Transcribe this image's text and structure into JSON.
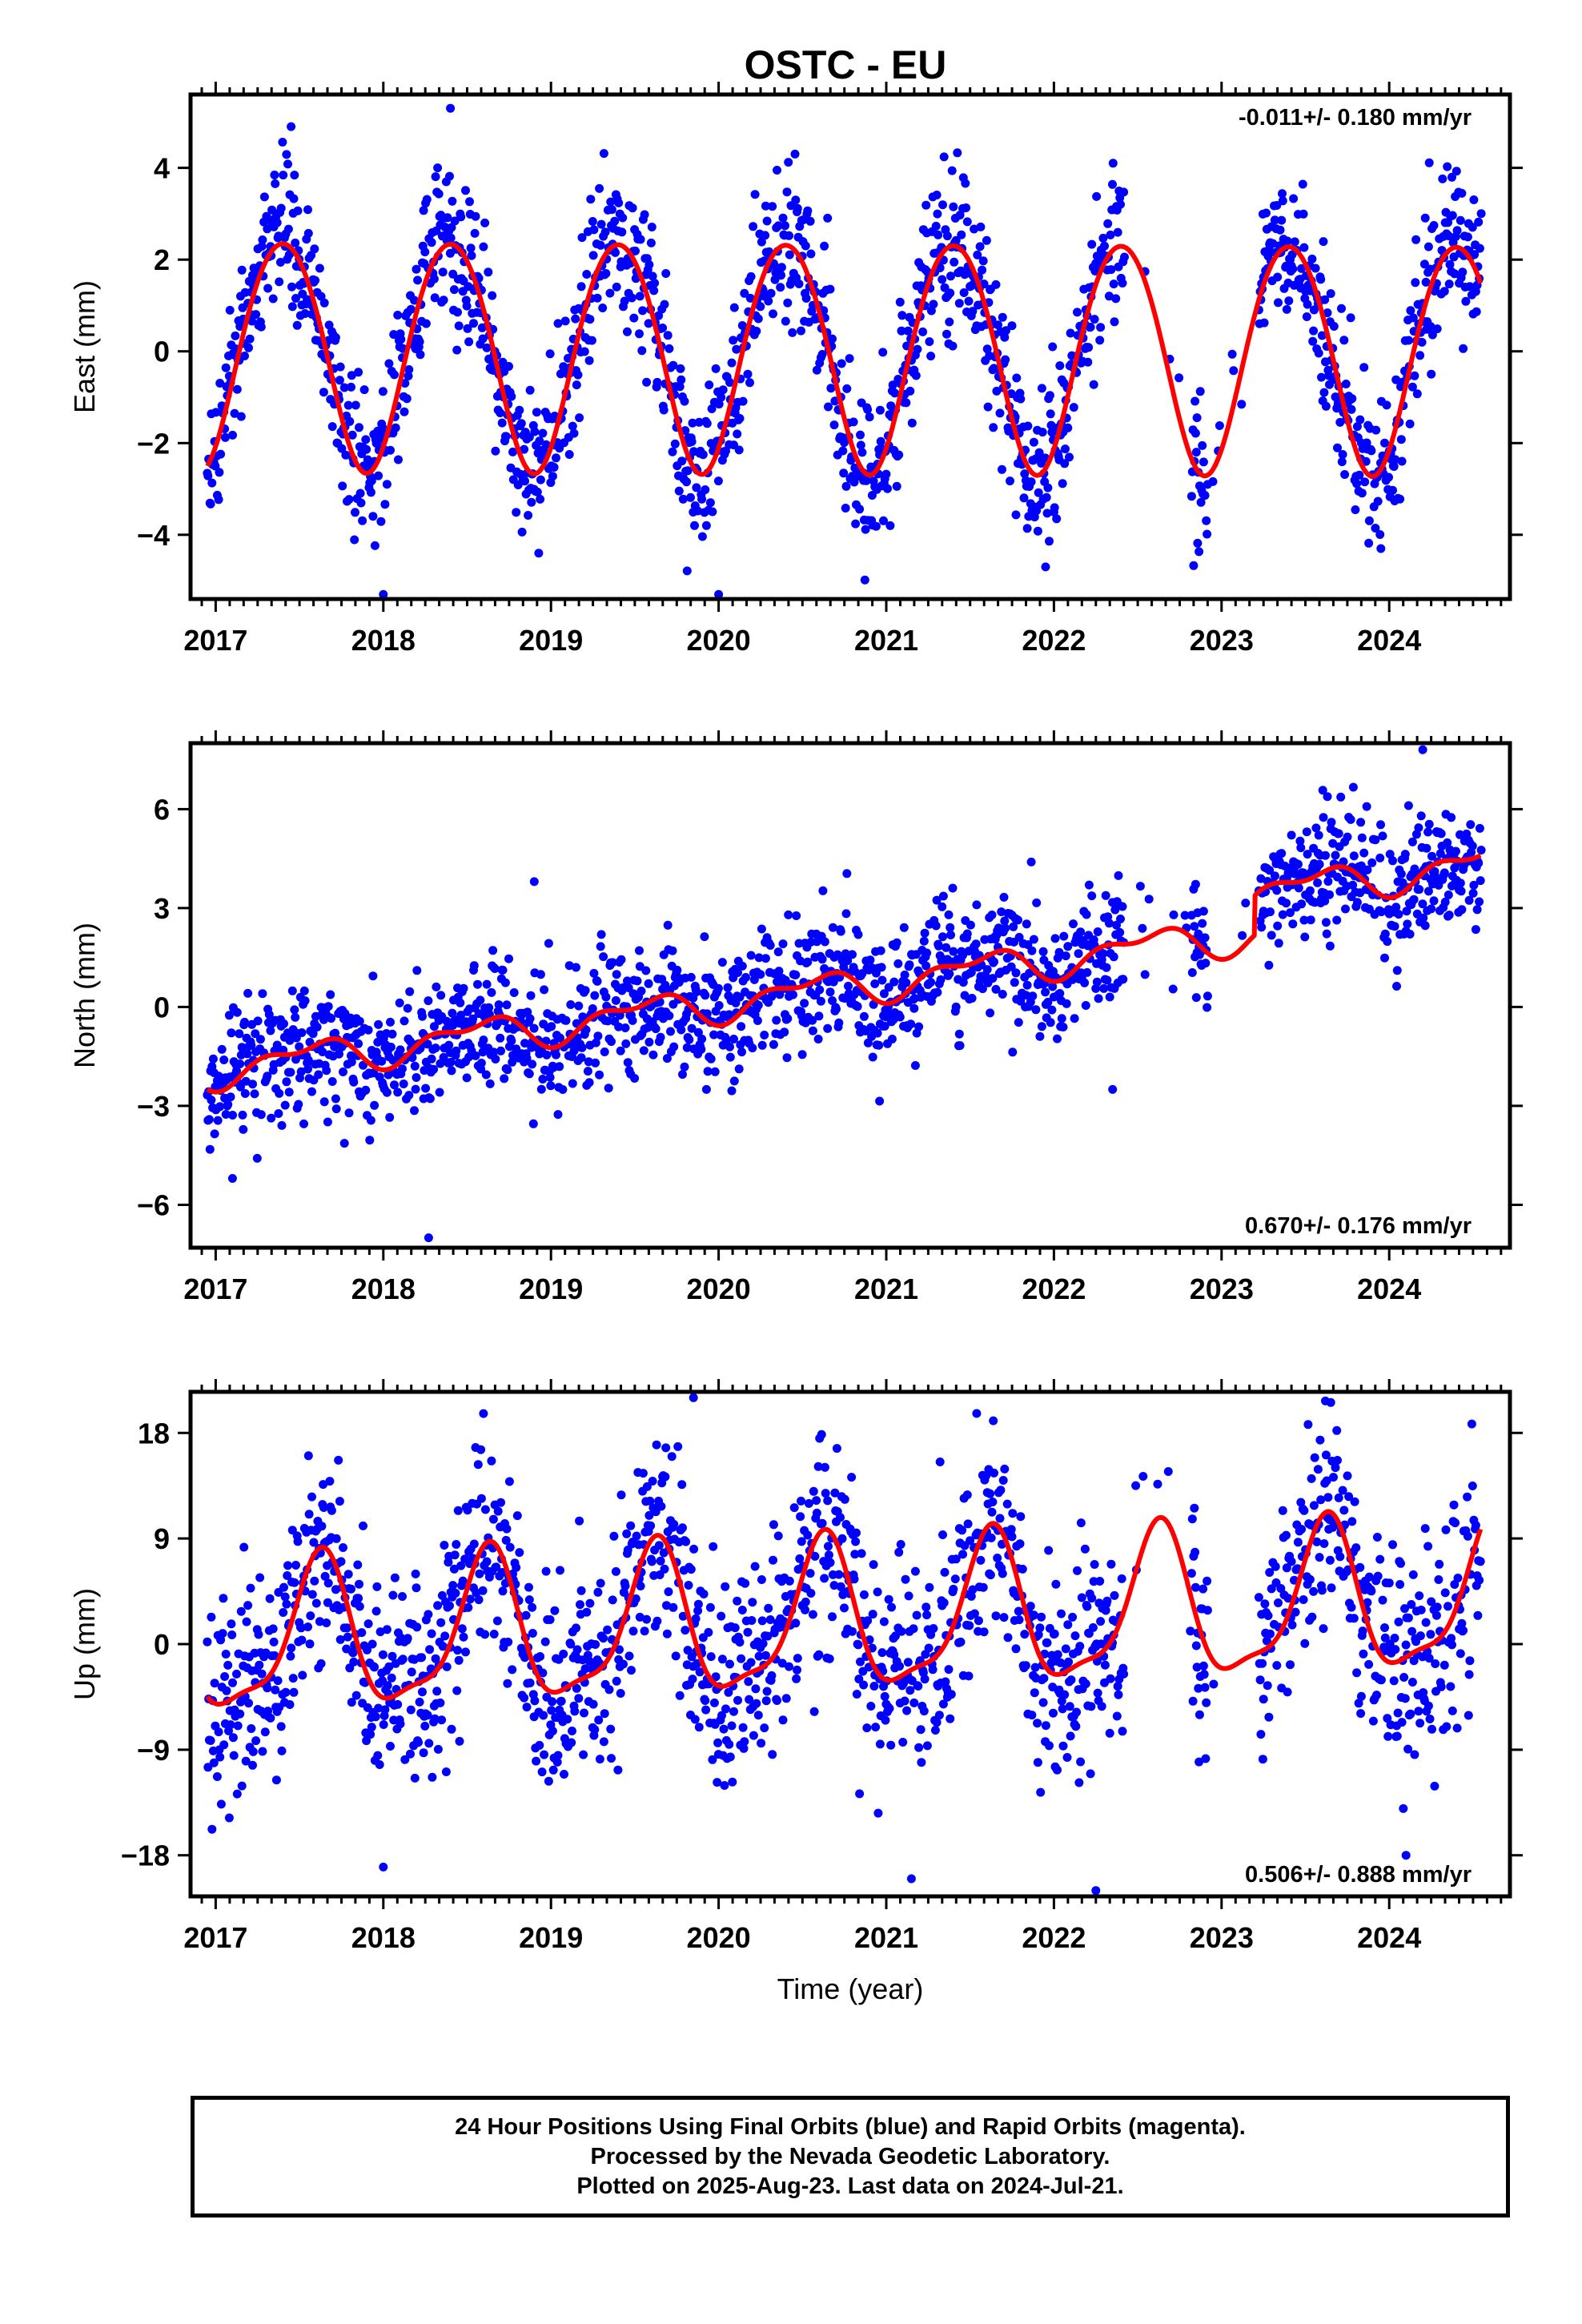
{
  "title": "OSTC - EU",
  "footer": {
    "lines": [
      "24 Hour Positions Using Final Orbits (blue) and Rapid Orbits (magenta).",
      "Processed by the Nevada Geodetic Laboratory.",
      "Plotted on 2025-Aug-23. Last data on 2024-Jul-21."
    ]
  },
  "colors": {
    "points": "#0000ff",
    "fit": "#ff0000",
    "frame": "#000000",
    "background": "#ffffff"
  },
  "chart_data": [
    {
      "type": "scatter",
      "component": "east",
      "ylabel": "East (mm)",
      "xlabel": "",
      "rate_label": "-0.011+/- 0.180 mm/yr",
      "rate_position": "top-right",
      "xlim": [
        2016.85,
        2024.72
      ],
      "ylim": [
        -5.4,
        5.6
      ],
      "x_ticks": [
        2017,
        2018,
        2019,
        2020,
        2021,
        2022,
        2023,
        2024
      ],
      "y_ticks": [
        4,
        2,
        0,
        -2,
        -4
      ],
      "y_tick_labels": [
        "4",
        "2",
        "0",
        "−2",
        "−4"
      ],
      "data_start": 2016.95,
      "data_end": 2024.55,
      "gaps": [
        [
          2022.42,
          2022.82
        ],
        [
          2022.92,
          2023.22
        ]
      ],
      "fit": {
        "offset": 0.0,
        "rate_mm_per_yr": -0.011,
        "annual_amp": 2.5,
        "annual_peak": 2017.4,
        "semiannual_amp": 0.15,
        "semiannual_peak": 2017.15
      },
      "scatter_sd": 0.85,
      "outliers": [
        [
          2018.0,
          -5.3
        ],
        [
          2018.4,
          5.3
        ],
        [
          2020.0,
          -5.3
        ],
        [
          2017.45,
          4.9
        ],
        [
          2021.95,
          -4.7
        ],
        [
          2023.95,
          -4.3
        ]
      ],
      "grid": false,
      "legend": "none"
    },
    {
      "type": "scatter",
      "component": "north",
      "ylabel": "North (mm)",
      "xlabel": "",
      "rate_label": "0.670+/- 0.176 mm/yr",
      "rate_position": "bottom-right",
      "xlim": [
        2016.85,
        2024.72
      ],
      "ylim": [
        -7.3,
        8.0
      ],
      "x_ticks": [
        2017,
        2018,
        2019,
        2020,
        2021,
        2022,
        2023,
        2024
      ],
      "y_ticks": [
        6,
        3,
        0,
        -3,
        -6
      ],
      "y_tick_labels": [
        "6",
        "3",
        "0",
        "−3",
        "−6"
      ],
      "data_start": 2016.95,
      "data_end": 2024.55,
      "gaps": [
        [
          2022.42,
          2022.82
        ],
        [
          2022.92,
          2023.22
        ]
      ],
      "fit": {
        "offset": -1.9,
        "rate_mm_per_yr": 0.67,
        "annual_amp": 0.45,
        "annual_peak": 2017.55,
        "semiannual_amp": 0.25,
        "semiannual_peak": 2017.25,
        "step_time": 2023.2,
        "step_size": 1.2
      },
      "scatter_sd": 0.95,
      "outliers": [
        [
          2018.27,
          -7.0
        ],
        [
          2018.9,
          3.8
        ],
        [
          2024.2,
          7.8
        ],
        [
          2017.1,
          -5.2
        ],
        [
          2022.35,
          -2.5
        ]
      ],
      "grid": false,
      "legend": "none"
    },
    {
      "type": "scatter",
      "component": "up",
      "ylabel": "Up (mm)",
      "xlabel": "Time (year)",
      "rate_label": "0.506+/- 0.888 mm/yr",
      "rate_position": "bottom-right",
      "xlim": [
        2016.85,
        2024.72
      ],
      "ylim": [
        -21.5,
        21.5
      ],
      "x_ticks": [
        2017,
        2018,
        2019,
        2020,
        2021,
        2022,
        2023,
        2024
      ],
      "y_ticks": [
        18,
        9,
        0,
        -9,
        -18
      ],
      "y_tick_labels": [
        "18",
        "9",
        "0",
        "−9",
        "−18"
      ],
      "data_start": 2016.95,
      "data_end": 2024.55,
      "gaps": [
        [
          2022.42,
          2022.82
        ],
        [
          2022.92,
          2023.22
        ]
      ],
      "fit": {
        "offset": 0.0,
        "rate_mm_per_yr": 0.506,
        "annual_amp": 6.2,
        "annual_peak": 2017.62,
        "semiannual_amp": 1.8,
        "semiannual_peak": 2017.15
      },
      "scatter_sd": 4.6,
      "outliers": [
        [
          2019.85,
          21.0
        ],
        [
          2022.25,
          -21.0
        ],
        [
          2021.15,
          -20.0
        ],
        [
          2018.0,
          -19.0
        ],
        [
          2024.1,
          -18.0
        ]
      ],
      "grid": false,
      "legend": "none"
    }
  ]
}
